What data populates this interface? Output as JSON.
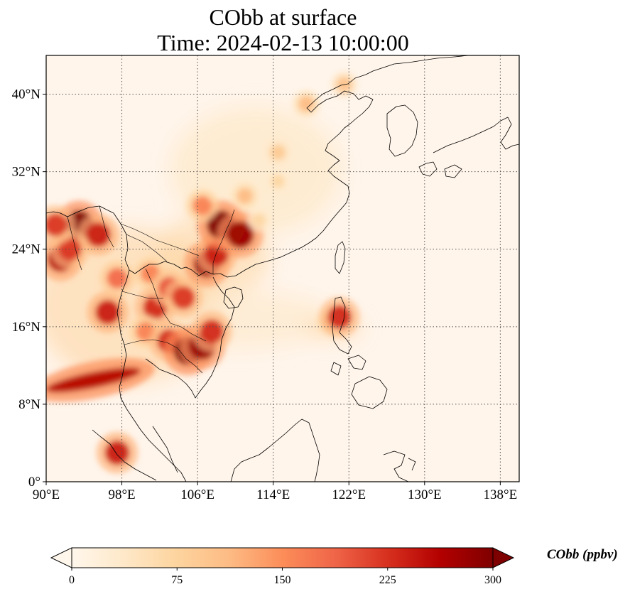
{
  "title": {
    "line1": "CObb at surface",
    "line2": "Time: 2024-02-13 10:00:00"
  },
  "map": {
    "lon_range": [
      90,
      140
    ],
    "lat_range": [
      0,
      44
    ],
    "lon_ticks": [
      90,
      98,
      106,
      114,
      122,
      130,
      138
    ],
    "lon_tick_labels": [
      "90°E",
      "98°E",
      "106°E",
      "114°E",
      "122°E",
      "130°E",
      "138°E"
    ],
    "lat_ticks": [
      0,
      8,
      16,
      24,
      32,
      40
    ],
    "lat_tick_labels": [
      "0°",
      "8°N",
      "16°N",
      "24°N",
      "32°N",
      "40°N"
    ],
    "gridlines": "dotted",
    "background_color": "#fff5eb",
    "coastline_color": "#000000",
    "hotspots": [
      {
        "lon": 91.5,
        "lat": 23.0,
        "value": 260
      },
      {
        "lon": 93.5,
        "lat": 26.5,
        "value": 300
      },
      {
        "lon": 95.5,
        "lat": 25.5,
        "value": 240
      },
      {
        "lon": 92.5,
        "lat": 24.0,
        "value": 220
      },
      {
        "lon": 96.5,
        "lat": 17.5,
        "value": 240
      },
      {
        "lon": 97.5,
        "lat": 21.0,
        "value": 180
      },
      {
        "lon": 101.0,
        "lat": 21.5,
        "value": 160
      },
      {
        "lon": 101.5,
        "lat": 18.0,
        "value": 230
      },
      {
        "lon": 103.0,
        "lat": 20.0,
        "value": 200
      },
      {
        "lon": 104.5,
        "lat": 19.0,
        "value": 220
      },
      {
        "lon": 100.5,
        "lat": 15.5,
        "value": 160
      },
      {
        "lon": 103.0,
        "lat": 14.5,
        "value": 230
      },
      {
        "lon": 105.0,
        "lat": 13.5,
        "value": 300
      },
      {
        "lon": 106.5,
        "lat": 14.0,
        "value": 280
      },
      {
        "lon": 107.5,
        "lat": 15.5,
        "value": 230
      },
      {
        "lon": 107.0,
        "lat": 22.5,
        "value": 280
      },
      {
        "lon": 108.0,
        "lat": 23.5,
        "value": 240
      },
      {
        "lon": 108.5,
        "lat": 26.5,
        "value": 300
      },
      {
        "lon": 110.5,
        "lat": 25.5,
        "value": 280
      },
      {
        "lon": 106.5,
        "lat": 28.5,
        "value": 160
      },
      {
        "lon": 111.0,
        "lat": 29.5,
        "value": 110
      },
      {
        "lon": 114.5,
        "lat": 34.0,
        "value": 90
      },
      {
        "lon": 117.5,
        "lat": 39.0,
        "value": 110
      },
      {
        "lon": 121.5,
        "lat": 41.0,
        "value": 100
      },
      {
        "lon": 120.0,
        "lat": 16.5,
        "value": 110
      },
      {
        "lon": 121.0,
        "lat": 17.0,
        "value": 230
      },
      {
        "lon": 91.0,
        "lat": 26.5,
        "value": 220
      },
      {
        "lon": 97.5,
        "lat": 3.0,
        "value": 240
      },
      {
        "lon": 114.5,
        "lat": 31.0,
        "value": 70
      },
      {
        "lon": 112.5,
        "lat": 27.0,
        "value": 70
      }
    ],
    "plume": {
      "from": [
        90,
        9.5
      ],
      "to": [
        100,
        11.5
      ],
      "value": 260
    }
  },
  "colorbar": {
    "min": 0,
    "max": 300,
    "ticks": [
      0,
      75,
      150,
      225,
      300
    ],
    "tick_labels": [
      "0",
      "75",
      "150",
      "225",
      "300"
    ],
    "label": "CObb (ppbv)",
    "extend": "both",
    "colormap": "OrRd",
    "stops": [
      "#fff7ec",
      "#fee8c8",
      "#fdd49e",
      "#fdbb84",
      "#fc8d59",
      "#ef6548",
      "#d7301f",
      "#b30000",
      "#7f0000"
    ]
  }
}
